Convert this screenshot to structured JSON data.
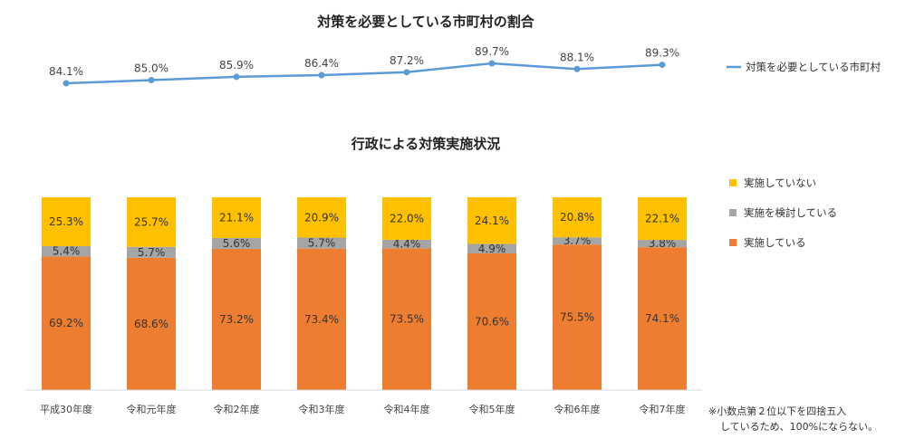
{
  "chart_data": [
    {
      "type": "line",
      "title": "対策を必要としている市町村の割合",
      "legend_position": "right",
      "color": "#5B9BD5",
      "series": [
        {
          "name": "対策を必要としている市町村",
          "values": [
            84.1,
            85.0,
            85.9,
            86.4,
            87.2,
            89.7,
            88.1,
            89.3
          ],
          "labels": [
            "84.1%",
            "85.0%",
            "85.9%",
            "86.4%",
            "87.2%",
            "89.7%",
            "88.1%",
            "89.3%"
          ]
        }
      ]
    },
    {
      "type": "bar",
      "stacked": true,
      "title": "行政による対策実施状況",
      "legend_position": "right",
      "categories": [
        "平成30年度",
        "令和元年度",
        "令和2年度",
        "令和3年度",
        "令和4年度",
        "令和5年度",
        "令和6年度",
        "令和7年度"
      ],
      "series": [
        {
          "name": "実施している",
          "color": "#ED7D31",
          "values": [
            69.2,
            68.6,
            73.2,
            73.4,
            73.5,
            70.6,
            75.5,
            74.1
          ],
          "labels": [
            "69.2%",
            "68.6%",
            "73.2%",
            "73.4%",
            "73.5%",
            "70.6%",
            "75.5%",
            "74.1%"
          ]
        },
        {
          "name": "実施を検討している",
          "color": "#A5A5A5",
          "values": [
            5.4,
            5.7,
            5.6,
            5.7,
            4.4,
            4.9,
            3.7,
            3.8
          ],
          "labels": [
            "5.4%",
            "5.7%",
            "5.6%",
            "5.7%",
            "4.4%",
            "4.9%",
            "3.7%",
            "3.8%"
          ]
        },
        {
          "name": "実施していない",
          "color": "#FFC000",
          "values": [
            25.3,
            25.7,
            21.1,
            20.9,
            22.0,
            24.1,
            20.8,
            22.1
          ],
          "labels": [
            "25.3%",
            "25.7%",
            "21.1%",
            "20.9%",
            "22.0%",
            "24.1%",
            "20.8%",
            "22.1%"
          ]
        }
      ]
    }
  ],
  "note": {
    "line1": "※小数点第２位以下を四捨五入",
    "line2": "しているため、100%にならない。"
  }
}
